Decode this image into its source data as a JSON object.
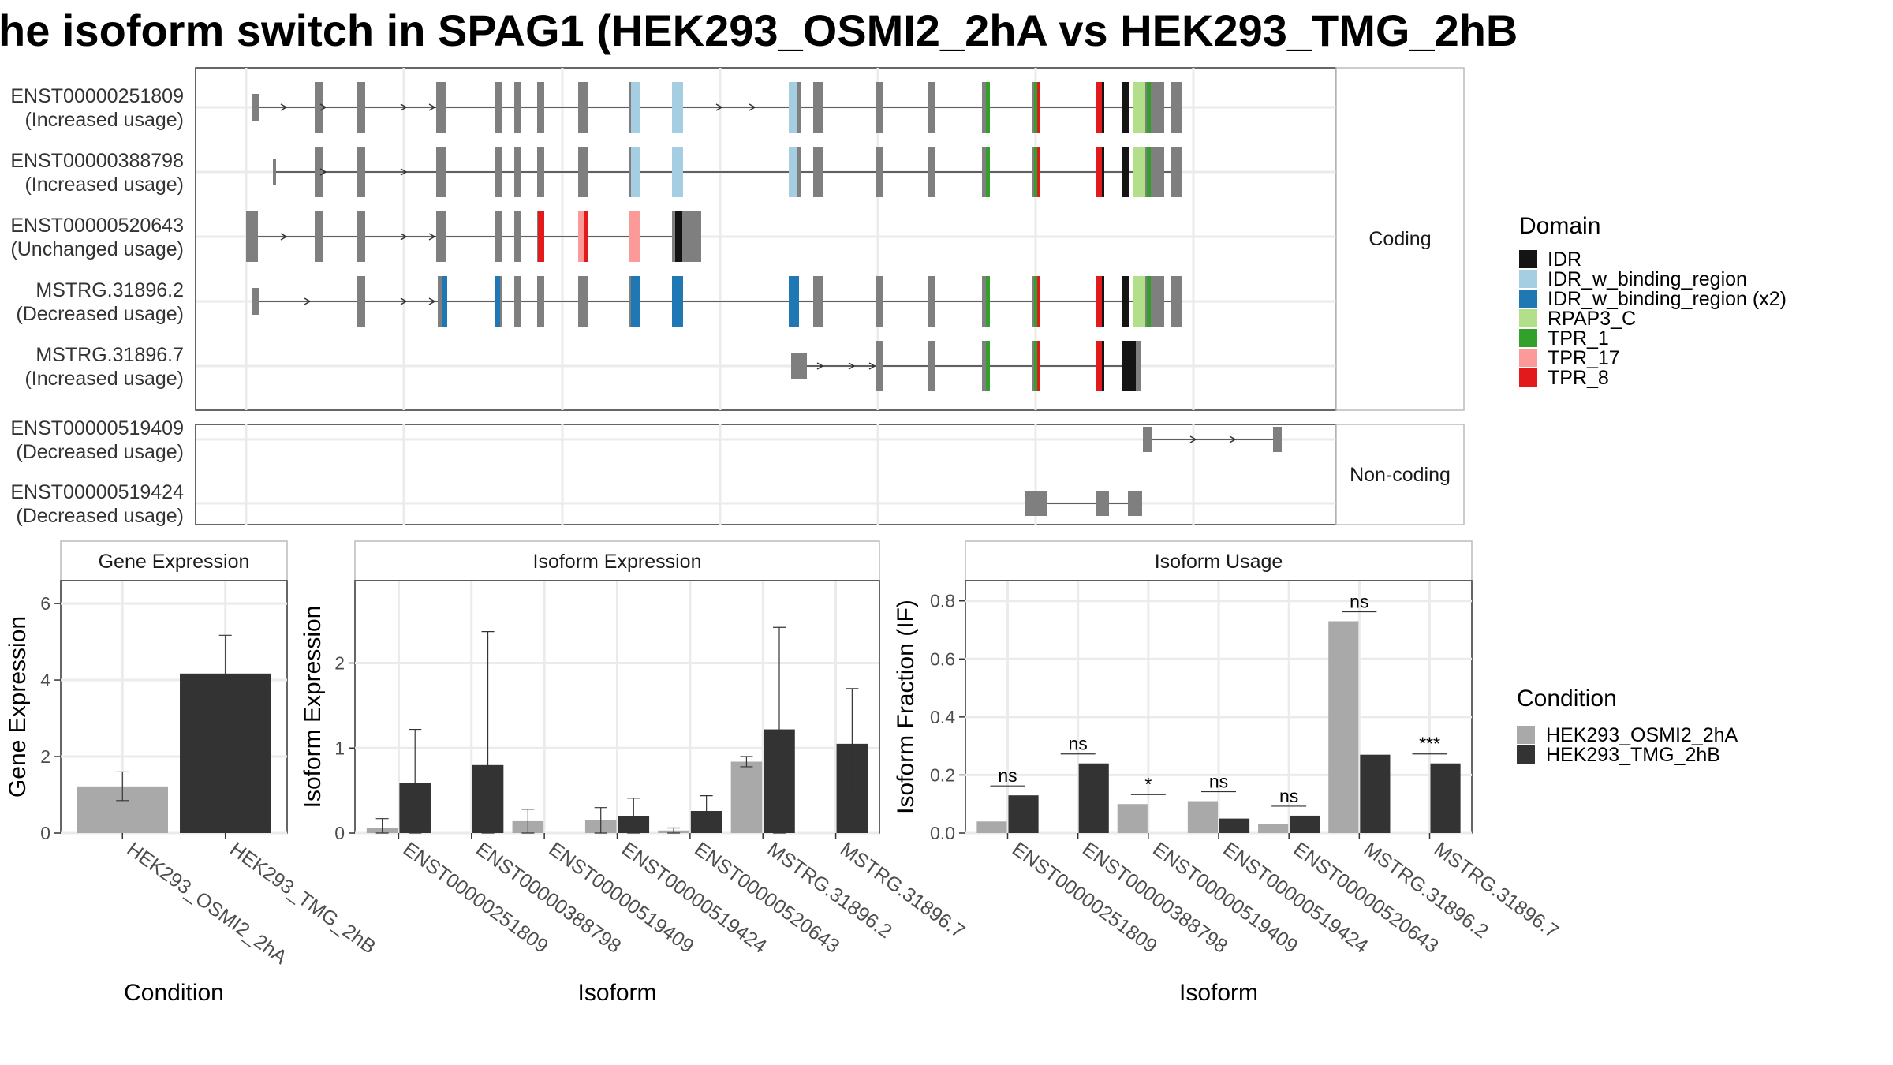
{
  "title": "he isoform switch in SPAG1 (HEK293_OSMI2_2hA vs HEK293_TMG_2hB",
  "chart_data": [
    {
      "type": "gene-structure",
      "facets": [
        "Coding",
        "Non-coding"
      ],
      "coding_transcripts": [
        {
          "id": "ENST00000251809",
          "usage": "(Increased usage)"
        },
        {
          "id": "ENST00000388798",
          "usage": "(Increased usage)"
        },
        {
          "id": "ENST00000520643",
          "usage": "(Unchanged usage)"
        },
        {
          "id": "MSTRG.31896.2",
          "usage": "(Decreased usage)"
        },
        {
          "id": "MSTRG.31896.7",
          "usage": "(Increased usage)"
        }
      ],
      "noncoding_transcripts": [
        {
          "id": "ENST00000519409",
          "usage": "(Decreased usage)"
        },
        {
          "id": "ENST00000519424",
          "usage": "(Decreased usage)"
        }
      ],
      "legend_title": "Domain",
      "domains": [
        {
          "name": "IDR",
          "color": "#141414"
        },
        {
          "name": "IDR_w_binding_region",
          "color": "#a6cee3"
        },
        {
          "name": "IDR_w_binding_region (x2)",
          "color": "#1f78b4"
        },
        {
          "name": "RPAP3_C",
          "color": "#b2df8a"
        },
        {
          "name": "TPR_1",
          "color": "#33a02c"
        },
        {
          "name": "TPR_17",
          "color": "#fb9a99"
        },
        {
          "name": "TPR_8",
          "color": "#e31a1c"
        }
      ]
    },
    {
      "type": "bar",
      "title": "Gene Expression",
      "xlabel": "Condition",
      "ylabel": "Gene Expression",
      "ylim": [
        0,
        6.6
      ],
      "yticks": [
        0,
        2,
        4,
        6
      ],
      "categories": [
        "HEK293_OSMI2_2hA",
        "HEK293_TMG_2hB"
      ],
      "values": [
        1.22,
        4.17
      ],
      "errors": [
        [
          0.85,
          1.6
        ],
        [
          3.17,
          5.17
        ]
      ]
    },
    {
      "type": "bar",
      "title": "Isoform Expression",
      "xlabel": "Isoform",
      "ylabel": "Isoform Expression",
      "ylim": [
        0,
        2.97
      ],
      "yticks": [
        0,
        1,
        2
      ],
      "categories": [
        "ENST00000251809",
        "ENST00000388798",
        "ENST00000519409",
        "ENST00000519424",
        "ENST00000520643",
        "MSTRG.31896.2",
        "MSTRG.31896.7"
      ],
      "series": [
        {
          "name": "HEK293_OSMI2_2hA",
          "color": "#a9a9a9",
          "values": [
            0.06,
            0.0,
            0.14,
            0.15,
            0.03,
            0.84,
            0.0
          ],
          "errors": [
            [
              0.0,
              0.17
            ],
            null,
            [
              0.0,
              0.28
            ],
            [
              0.0,
              0.3
            ],
            [
              0.0,
              0.06
            ],
            [
              0.78,
              0.9
            ],
            null
          ]
        },
        {
          "name": "HEK293_TMG_2hB",
          "color": "#333333",
          "values": [
            0.59,
            0.8,
            0.0,
            0.2,
            0.26,
            1.22,
            1.05
          ],
          "errors": [
            [
              0.0,
              1.22
            ],
            [
              0.0,
              2.37
            ],
            null,
            [
              0.0,
              0.41
            ],
            [
              0.08,
              0.44
            ],
            [
              0.0,
              2.42
            ],
            [
              0.39,
              1.7
            ]
          ]
        }
      ]
    },
    {
      "type": "bar",
      "title": "Isoform Usage",
      "xlabel": "Isoform",
      "ylabel": "Isoform Fraction (IF)",
      "ylim": [
        0,
        0.87
      ],
      "yticks": [
        0.0,
        0.2,
        0.4,
        0.6,
        0.8
      ],
      "ytick_labels": [
        "0.0",
        "0.2",
        "0.4",
        "0.6",
        "0.8"
      ],
      "categories": [
        "ENST00000251809",
        "ENST00000388798",
        "ENST00000519409",
        "ENST00000519424",
        "ENST00000520643",
        "MSTRG.31896.2",
        "MSTRG.31896.7"
      ],
      "series": [
        {
          "name": "HEK293_OSMI2_2hA",
          "color": "#a9a9a9",
          "values": [
            0.04,
            0.0,
            0.1,
            0.11,
            0.03,
            0.73,
            0.0
          ]
        },
        {
          "name": "HEK293_TMG_2hB",
          "color": "#333333",
          "values": [
            0.13,
            0.24,
            0.0,
            0.05,
            0.06,
            0.27,
            0.24
          ]
        }
      ],
      "significance": [
        "ns",
        "ns",
        "*",
        "ns",
        "ns",
        "ns",
        "***"
      ]
    }
  ],
  "condition_legend": {
    "title": "Condition",
    "items": [
      {
        "name": "HEK293_OSMI2_2hA",
        "color": "#a9a9a9"
      },
      {
        "name": "HEK293_TMG_2hB",
        "color": "#333333"
      }
    ]
  }
}
